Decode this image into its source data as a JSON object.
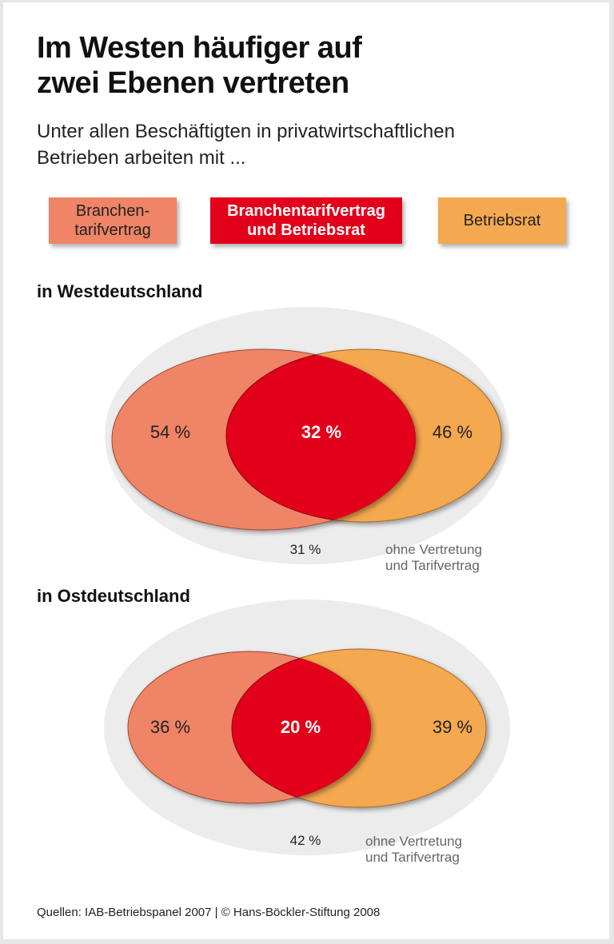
{
  "title": [
    "Im Westen häufiger auf",
    "zwei Ebenen vertreten"
  ],
  "subtitle": [
    "Unter allen Beschäftigten in privatwirtschaftlichen",
    "Betrieben arbeiten mit ..."
  ],
  "legend": [
    {
      "label": [
        "Branchen-",
        "tarifvertrag"
      ],
      "color": "#ef8466"
    },
    {
      "label": [
        "Branchentarifvertrag",
        "und Betriebsrat"
      ],
      "color": "#e2001a"
    },
    {
      "label": [
        "Betriebsrat"
      ],
      "color": "#f4a850"
    }
  ],
  "footer": "Quellen: IAB-Betriebspanel 2007 | © Hans-Böckler-Stiftung 2008",
  "chart_data": [
    {
      "type": "venn",
      "title": "in Westdeutschland",
      "sets": [
        {
          "name": "Branchentarifvertrag",
          "value": 54,
          "label": "54 %"
        },
        {
          "name": "Betriebsrat",
          "value": 46,
          "label": "46 %"
        }
      ],
      "intersection": {
        "name": "Branchentarifvertrag und Betriebsrat",
        "value": 32,
        "label": "32 %"
      },
      "outside": {
        "value": 31,
        "label": "31 %",
        "caption": [
          "ohne Vertretung",
          "und Tarifvertrag"
        ]
      }
    },
    {
      "type": "venn",
      "title": "in Ostdeutschland",
      "sets": [
        {
          "name": "Branchentarifvertrag",
          "value": 36,
          "label": "36 %"
        },
        {
          "name": "Betriebsrat",
          "value": 39,
          "label": "39 %"
        }
      ],
      "intersection": {
        "name": "Branchentarifvertrag und Betriebsrat",
        "value": 20,
        "label": "20 %"
      },
      "outside": {
        "value": 42,
        "label": "42 %",
        "caption": [
          "ohne Vertretung",
          "und Tarifvertrag"
        ]
      }
    }
  ]
}
